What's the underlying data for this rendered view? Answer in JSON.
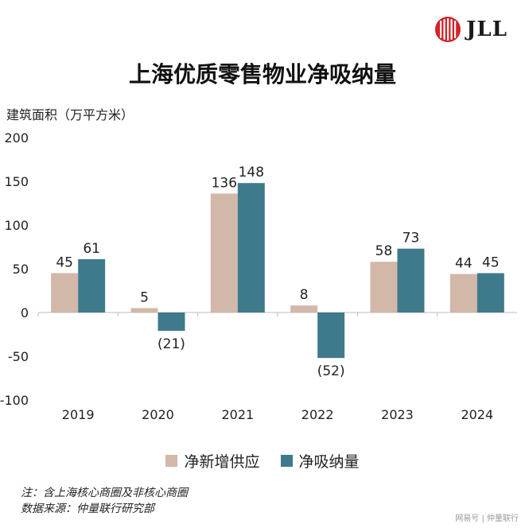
{
  "brand": {
    "name": "JLL",
    "color": "#d2232a"
  },
  "title": "上海优质零售物业净吸纳量",
  "unit_label": "建筑面积（万平方米）",
  "notes": {
    "line1": "注：含上海核心商圈及非核心商圈",
    "line2": "数据来源：仲量联行研究部"
  },
  "watermark": "网易号 | 仲量联行",
  "chart_data": {
    "type": "bar",
    "categories": [
      "2019",
      "2020",
      "2021",
      "2022",
      "2023",
      "2024"
    ],
    "series": [
      {
        "name": "净新增供应",
        "color": "#d2b8a8",
        "values": [
          45,
          5,
          136,
          8,
          58,
          44
        ],
        "labels": [
          "45",
          "5",
          "136",
          "8",
          "58",
          "44"
        ]
      },
      {
        "name": "净吸纳量",
        "color": "#3f7a8c",
        "values": [
          61,
          -21,
          148,
          -52,
          73,
          45
        ],
        "labels": [
          "61",
          "(21)",
          "148",
          "(52)",
          "73",
          "45"
        ]
      }
    ],
    "ylim": [
      -100,
      200
    ],
    "yticks": [
      200,
      150,
      100,
      50,
      0,
      -50,
      -100
    ],
    "ytick_labels": [
      "200",
      "150",
      "100",
      "50",
      "0",
      "-50",
      "-100"
    ],
    "ylabel": "建筑面积（万平方米）",
    "grid": false,
    "legend_position": "bottom"
  }
}
